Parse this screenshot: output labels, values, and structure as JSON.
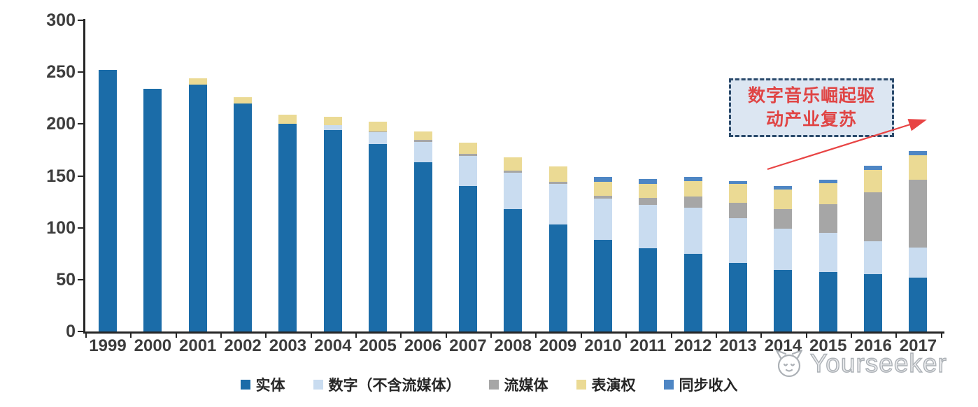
{
  "chart_data": {
    "type": "bar",
    "stacked": true,
    "title": "",
    "xlabel": "",
    "ylabel": "",
    "x": [
      "1999",
      "2000",
      "2001",
      "2002",
      "2003",
      "2004",
      "2005",
      "2006",
      "2007",
      "2008",
      "2009",
      "2010",
      "2011",
      "2012",
      "2013",
      "2014",
      "2015",
      "2016",
      "2017"
    ],
    "series": [
      {
        "key": "physical",
        "name": "实体",
        "color": "#1B6CA8",
        "values": [
          252,
          234,
          238,
          220,
          200,
          194,
          181,
          163,
          140,
          118,
          103,
          88,
          80,
          75,
          66,
          59,
          57,
          55,
          52
        ]
      },
      {
        "key": "digital",
        "name": "数字（不含流媒体）",
        "color": "#C9DCF0",
        "values": [
          0,
          0,
          0,
          0,
          0,
          5,
          11,
          20,
          29,
          35,
          39,
          40,
          42,
          44,
          43,
          40,
          38,
          32,
          29
        ]
      },
      {
        "key": "streaming",
        "name": "流媒体",
        "color": "#A6A6A6",
        "values": [
          0,
          0,
          0,
          0,
          0,
          0,
          1,
          2,
          2,
          2,
          2,
          3,
          7,
          11,
          15,
          19,
          28,
          47,
          65
        ]
      },
      {
        "key": "performance",
        "name": "表演权",
        "color": "#EBDA94",
        "values": [
          0,
          0,
          6,
          6,
          9,
          8,
          9,
          8,
          11,
          13,
          15,
          13,
          13,
          15,
          18,
          19,
          20,
          22,
          24
        ]
      },
      {
        "key": "sync",
        "name": "同步收入",
        "color": "#4E86C4",
        "values": [
          0,
          0,
          0,
          0,
          0,
          0,
          0,
          0,
          0,
          0,
          0,
          5,
          5,
          4,
          3,
          3,
          3,
          4,
          4
        ]
      }
    ],
    "ylim": [
      0,
      300
    ],
    "ytick_step": 50,
    "grid": false,
    "legend_position": "bottom"
  },
  "annotation": {
    "line1": "数字音乐崛起驱",
    "line2": "动产业复苏",
    "text_color": "#E04545",
    "border_color": "#2B4A6B",
    "fill_color": "#DCE6F2",
    "arrow_color": "#E84444"
  },
  "watermark": {
    "text": "Yourseeker",
    "color": "#A4A9AF"
  },
  "axis": {
    "color": "#262626",
    "label_color": "#3D3D3D"
  }
}
